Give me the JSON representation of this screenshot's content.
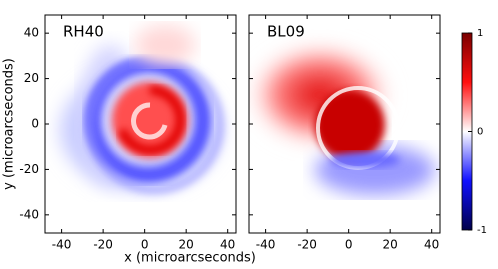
{
  "chart_data": [
    {
      "type": "heatmap",
      "title": "RH40",
      "xlabel": "x (microarcseconds)",
      "ylabel": "y (microarcseconds)",
      "xlim": [
        -48,
        44
      ],
      "xticks": [
        -40,
        -20,
        0,
        20,
        40
      ],
      "ylim": [
        -48,
        48
      ],
      "yticks": [
        -40,
        -20,
        0,
        20,
        40
      ]
    },
    {
      "type": "heatmap",
      "title": "BL09",
      "xlim": [
        -48,
        44
      ],
      "xticks": [
        -40,
        -20,
        0,
        20,
        40
      ],
      "ylim": [
        -48,
        48
      ],
      "yticks": [
        -40,
        -20,
        0,
        20,
        40
      ],
      "colorbar": {
        "lim": [
          -1,
          1
        ],
        "ticks": [
          -1,
          0,
          1
        ]
      }
    }
  ]
}
